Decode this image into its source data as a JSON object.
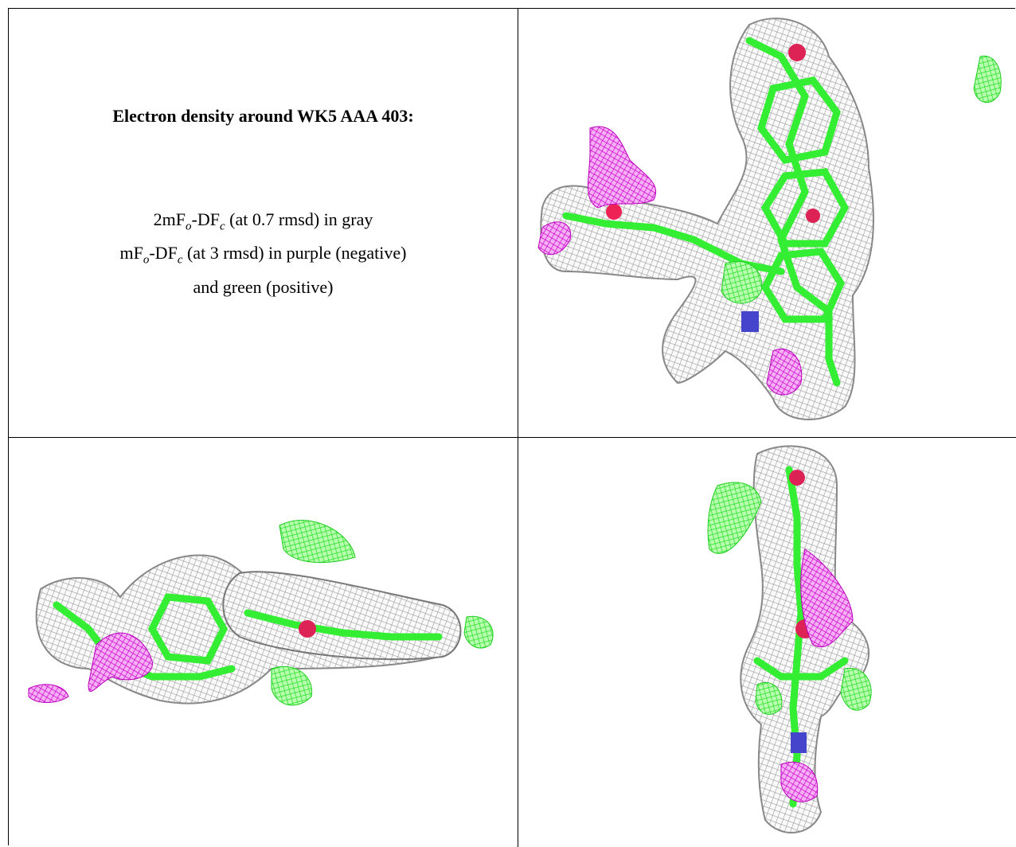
{
  "caption": {
    "title": "Electron density around WK5 AAA 403:",
    "lines": [
      [
        "2mF",
        "o",
        "-DF",
        "c",
        " (at 0.7 rmsd) in gray"
      ],
      [
        "mF",
        "o",
        "-DF",
        "c",
        " (at 3 rmsd) in purple (negative)"
      ],
      [
        "and green (positive)"
      ]
    ]
  }
}
